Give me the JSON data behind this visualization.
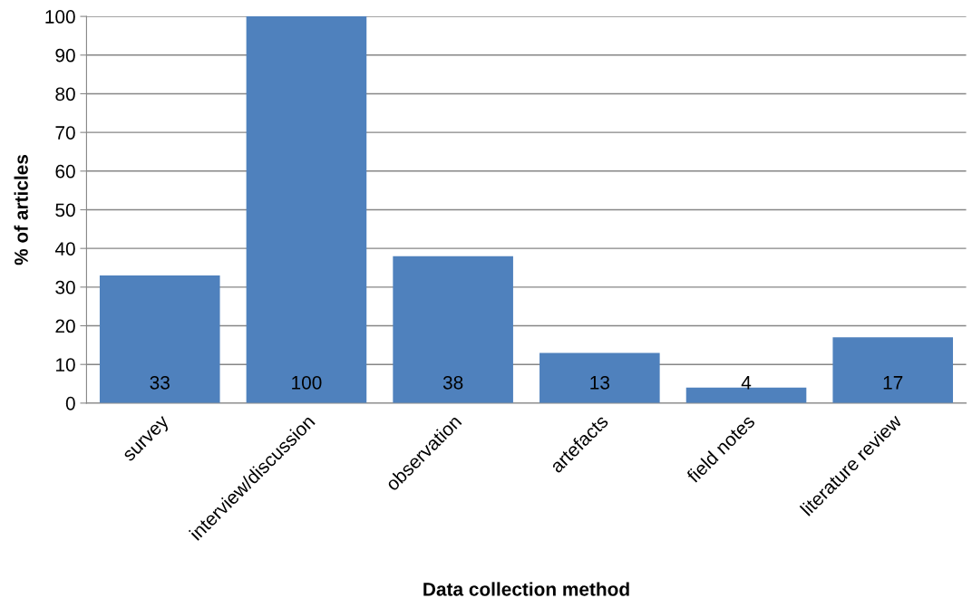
{
  "chart_data": {
    "type": "bar",
    "xlabel": "Data collection method",
    "ylabel": "% of articles",
    "categories": [
      "survey",
      "interview/discussion",
      "observation",
      "artefacts",
      "field notes",
      "literature review"
    ],
    "values": [
      33,
      100,
      38,
      13,
      4,
      17
    ],
    "color": "#4f81bd",
    "ylim": [
      0,
      100
    ],
    "yticks": [
      0,
      10,
      20,
      30,
      40,
      50,
      60,
      70,
      80,
      90,
      100
    ],
    "grid": "y",
    "data_labels": true
  }
}
